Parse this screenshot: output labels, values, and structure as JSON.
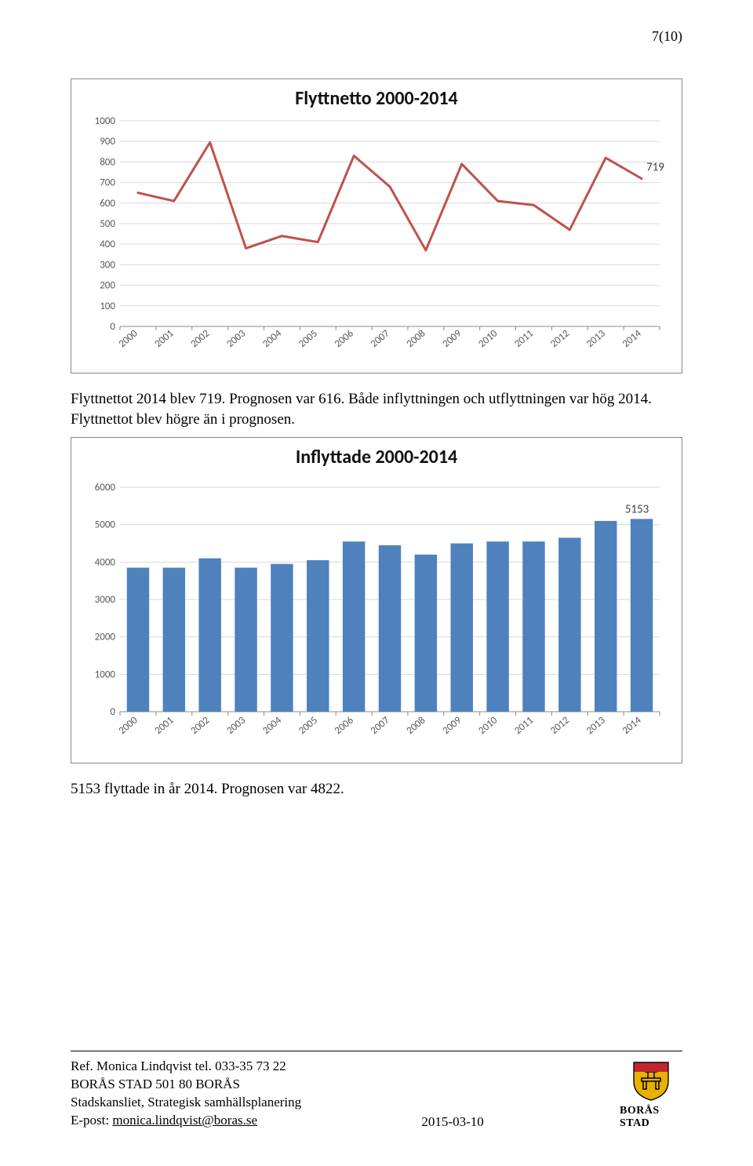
{
  "page_number": "7(10)",
  "line_chart": {
    "title": "Flyttnetto 2000-2014",
    "title_fontsize": 24,
    "ytick_labels": [
      "0",
      "100",
      "200",
      "300",
      "400",
      "500",
      "600",
      "700",
      "800",
      "900",
      "1000"
    ],
    "ylim": [
      0,
      1000
    ],
    "ytick_step": 100,
    "categories": [
      "2000",
      "2001",
      "2002",
      "2003",
      "2004",
      "2005",
      "2006",
      "2007",
      "2008",
      "2009",
      "2010",
      "2011",
      "2012",
      "2013",
      "2014"
    ],
    "values": [
      650,
      610,
      895,
      380,
      440,
      410,
      830,
      680,
      370,
      790,
      610,
      590,
      470,
      820,
      719
    ],
    "last_label": "719",
    "line_color": "#c0504d",
    "line_width": 3,
    "grid_color": "#d9d9d9",
    "axis_text_color": "#595959",
    "background_color": "#ffffff"
  },
  "para1": "Flyttnettot 2014 blev 719. Prognosen var 616. Både inflyttningen och utflyttningen var hög 2014. Flyttnettot blev högre än i prognosen.",
  "bar_chart": {
    "title": "Inflyttade 2000-2014",
    "title_fontsize": 24,
    "ytick_labels": [
      "0",
      "1000",
      "2000",
      "3000",
      "4000",
      "5000",
      "6000"
    ],
    "ylim": [
      0,
      6000
    ],
    "ytick_step": 1000,
    "categories": [
      "2000",
      "2001",
      "2002",
      "2003",
      "2004",
      "2005",
      "2006",
      "2007",
      "2008",
      "2009",
      "2010",
      "2011",
      "2012",
      "2013",
      "2014"
    ],
    "values": [
      3850,
      3850,
      4100,
      3850,
      3950,
      4050,
      4550,
      4450,
      4200,
      4500,
      4550,
      4550,
      4650,
      5100,
      5153
    ],
    "last_label": "5153",
    "bar_color": "#4f81bd",
    "bar_width": 0.62,
    "grid_color": "#d9d9d9",
    "axis_text_color": "#595959",
    "background_color": "#ffffff"
  },
  "para2": "5153 flyttade in år 2014. Prognosen var 4822.",
  "footer": {
    "line1": "Ref. Monica Lindqvist tel. 033-35 73 22",
    "line2": "BORÅS STAD 501 80 BORÅS",
    "line3": "Stadskansliet, Strategisk samhällsplanering",
    "line4_prefix": "E-post: ",
    "line4_link": "monica.lindqvist@boras.se",
    "date": "2015-03-10",
    "logo_text": "BORÅS STAD"
  }
}
